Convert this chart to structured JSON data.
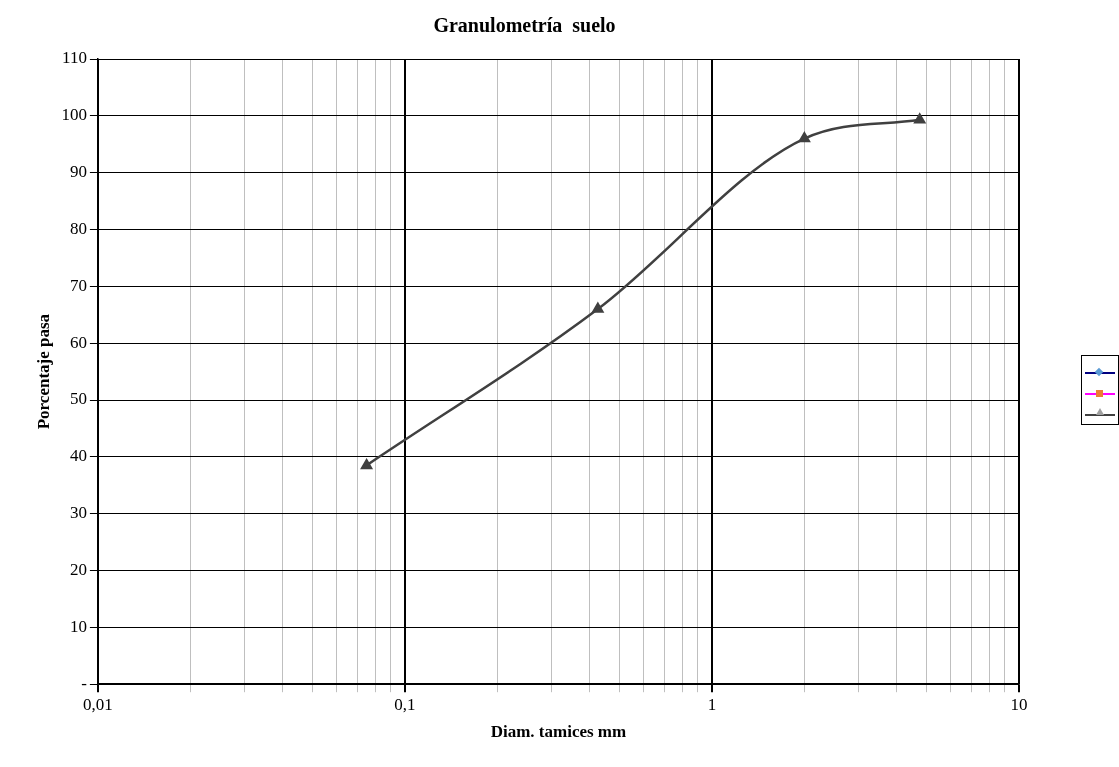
{
  "chart_data": {
    "type": "line",
    "title": "Granulometría  suelo",
    "xlabel": "Diam. tamices mm",
    "ylabel": "Porcentaje pasa",
    "log": "x",
    "grid": true,
    "marker": "triangle",
    "line_style": "solid",
    "x": [
      0.075,
      0.425,
      2,
      4.75
    ],
    "xlim": [
      0.01,
      10
    ],
    "xticks": [
      {
        "value": 0.01,
        "label": "0,01"
      },
      {
        "value": 0.02,
        "label": null
      },
      {
        "value": 0.03,
        "label": null
      },
      {
        "value": 0.04,
        "label": null
      },
      {
        "value": 0.05,
        "label": null
      },
      {
        "value": 0.06,
        "label": null
      },
      {
        "value": 0.07,
        "label": null
      },
      {
        "value": 0.08,
        "label": null
      },
      {
        "value": 0.09,
        "label": null
      },
      {
        "value": 0.1,
        "label": "0,1"
      },
      {
        "value": 0.2,
        "label": null
      },
      {
        "value": 0.3,
        "label": null
      },
      {
        "value": 0.4,
        "label": null
      },
      {
        "value": 0.5,
        "label": null
      },
      {
        "value": 0.6,
        "label": null
      },
      {
        "value": 0.7,
        "label": null
      },
      {
        "value": 0.8,
        "label": null
      },
      {
        "value": 0.9,
        "label": null
      },
      1,
      {
        "value": 2,
        "label": null
      },
      {
        "value": 3,
        "label": null
      },
      {
        "value": 4,
        "label": null
      },
      {
        "value": 5,
        "label": null
      },
      {
        "value": 6,
        "label": null
      },
      {
        "value": 7,
        "label": null
      },
      {
        "value": 8,
        "label": null
      },
      {
        "value": 9,
        "label": null
      },
      10
    ],
    "ylim": [
      0,
      110
    ],
    "yticks": [
      {
        "value": 0,
        "label": "-"
      },
      10,
      20,
      30,
      40,
      50,
      60,
      70,
      80,
      90,
      100,
      110
    ],
    "series": [
      {
        "color": "#404040",
        "values": [
          38.5,
          66,
          96,
          99.3
        ]
      }
    ]
  }
}
